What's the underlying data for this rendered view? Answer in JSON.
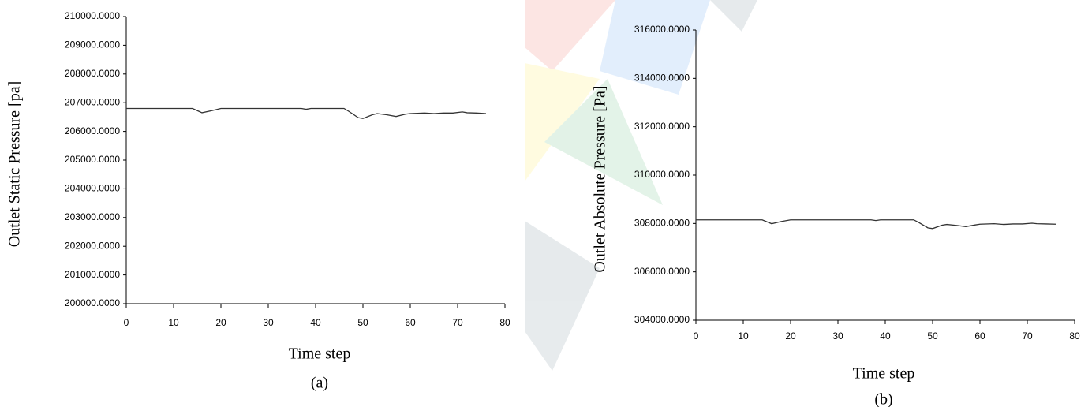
{
  "chart_data": [
    {
      "type": "line",
      "y_label": "Outlet Static Pressure [pa]",
      "x_label": "Time step",
      "caption": "(a)",
      "xlim": [
        0,
        80
      ],
      "xticks": [
        0,
        10,
        20,
        30,
        40,
        50,
        60,
        70,
        80
      ],
      "ylim": [
        200000,
        210000
      ],
      "yticks": [
        {
          "value": 200000,
          "label": "200000.0000"
        },
        {
          "value": 201000,
          "label": "201000.0000"
        },
        {
          "value": 202000,
          "label": "202000.0000"
        },
        {
          "value": 203000,
          "label": "203000.0000"
        },
        {
          "value": 204000,
          "label": "204000.0000"
        },
        {
          "value": 205000,
          "label": "205000.0000"
        },
        {
          "value": 206000,
          "label": "206000.0000"
        },
        {
          "value": 207000,
          "label": "207000.0000"
        },
        {
          "value": 208000,
          "label": "208000.0000"
        },
        {
          "value": 209000,
          "label": "209000.0000"
        },
        {
          "value": 210000,
          "label": "210000.0000"
        }
      ],
      "color": "#333333",
      "x": [
        0,
        14,
        16,
        18,
        20,
        37,
        38,
        39,
        46,
        47,
        49,
        50,
        52,
        53,
        55,
        57,
        59,
        60,
        63,
        65,
        67,
        69,
        71,
        72,
        74,
        76
      ],
      "values": [
        206800,
        206800,
        206650,
        206720,
        206800,
        206800,
        206770,
        206800,
        206800,
        206700,
        206480,
        206450,
        206580,
        206620,
        206580,
        206520,
        206600,
        206620,
        206640,
        206620,
        206640,
        206640,
        206680,
        206650,
        206640,
        206620
      ]
    },
    {
      "type": "line",
      "y_label": "Outlet Absolute Pressure [Pa]",
      "x_label": "Time step",
      "caption": "(b)",
      "xlim": [
        0,
        80
      ],
      "xticks": [
        0,
        10,
        20,
        30,
        40,
        50,
        60,
        70,
        80
      ],
      "ylim": [
        304000,
        316000
      ],
      "yticks": [
        {
          "value": 304000,
          "label": "304000.0000"
        },
        {
          "value": 306000,
          "label": "306000.0000"
        },
        {
          "value": 308000,
          "label": "308000.0000"
        },
        {
          "value": 310000,
          "label": "310000.0000"
        },
        {
          "value": 312000,
          "label": "312000.0000"
        },
        {
          "value": 314000,
          "label": "314000.0000"
        },
        {
          "value": 316000,
          "label": "316000.0000"
        }
      ],
      "color": "#333333",
      "x": [
        0,
        14,
        16,
        18,
        20,
        37,
        38,
        39,
        46,
        47,
        49,
        50,
        52,
        53,
        55,
        57,
        59,
        60,
        63,
        65,
        67,
        69,
        71,
        72,
        74,
        76
      ],
      "values": [
        308150,
        308150,
        307990,
        308080,
        308150,
        308150,
        308120,
        308150,
        308150,
        308050,
        307820,
        307790,
        307930,
        307960,
        307920,
        307870,
        307940,
        307970,
        307990,
        307960,
        307980,
        307980,
        308010,
        307990,
        307980,
        307970
      ]
    }
  ]
}
